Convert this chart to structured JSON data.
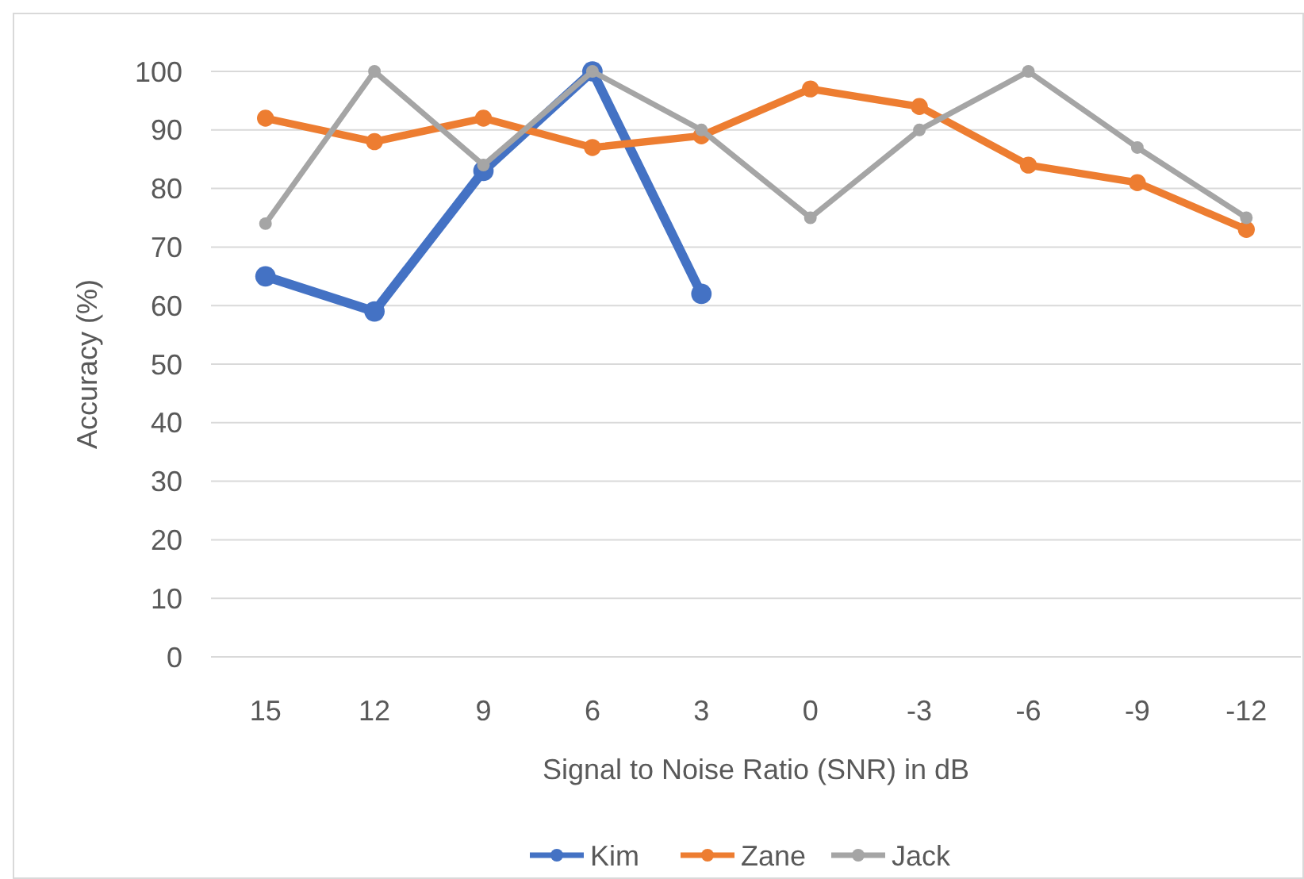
{
  "chart_data": {
    "type": "line",
    "xlabel": "Signal to Noise Ratio (SNR) in dB",
    "ylabel": "Accuracy (%)",
    "categories": [
      "15",
      "12",
      "9",
      "6",
      "3",
      "0",
      "-3",
      "-6",
      "-9",
      "-12"
    ],
    "series": [
      {
        "name": "Kim",
        "color": "#4472c4",
        "values": [
          65,
          59,
          83,
          100,
          62,
          null,
          null,
          null,
          null,
          null
        ]
      },
      {
        "name": "Zane",
        "color": "#ed7d31",
        "values": [
          92,
          88,
          92,
          87,
          89,
          97,
          94,
          84,
          81,
          73
        ]
      },
      {
        "name": "Jack",
        "color": "#a5a5a5",
        "values": [
          74,
          100,
          84,
          100,
          90,
          75,
          90,
          100,
          87,
          75
        ]
      }
    ],
    "ylim": [
      0,
      100
    ],
    "yticks": [
      0,
      10,
      20,
      30,
      40,
      50,
      60,
      70,
      80,
      90,
      100
    ],
    "grid": "y",
    "legend": "bottom",
    "marker": "circle",
    "line_style": "solid"
  }
}
